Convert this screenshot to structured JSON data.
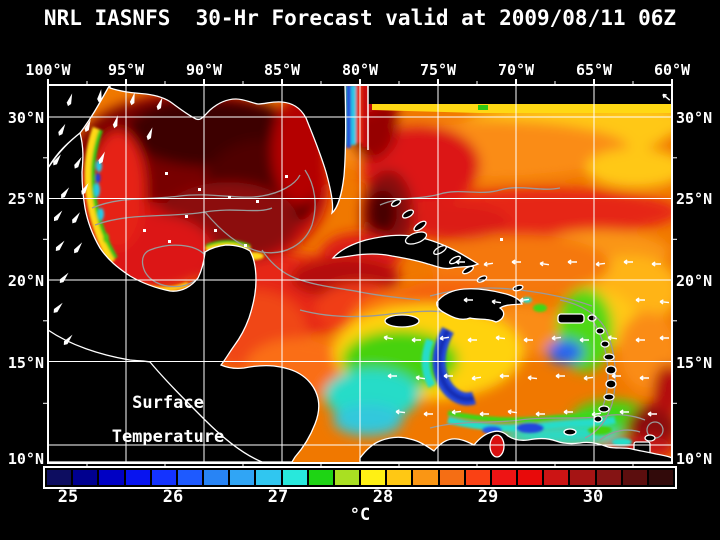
{
  "title": "NRL IASNFS  30-Hr Forecast valid at 2009/08/11 06Z",
  "axes": {
    "top": [
      "100°W",
      "95°W",
      "90°W",
      "85°W",
      "80°W",
      "75°W",
      "70°W",
      "65°W",
      "60°W"
    ],
    "left": [
      "30°N",
      "25°N",
      "20°N",
      "15°N",
      "10°N"
    ],
    "right": [
      "30°N",
      "25°N",
      "20°N",
      "15°N",
      "10°N"
    ]
  },
  "annotation": {
    "line1": "Surface",
    "line2": "Temperature"
  },
  "colorbar": {
    "unit": "°C",
    "ticks": [
      "25",
      "26",
      "27",
      "28",
      "29",
      "30"
    ],
    "min": 24.75,
    "max": 30.75,
    "step": 0.25,
    "colors": [
      "#0d0d60",
      "#00008f",
      "#0000c4",
      "#0814f0",
      "#1433ff",
      "#1e5aff",
      "#2884f5",
      "#30a5f5",
      "#30c6f0",
      "#28e8dc",
      "#1ed414",
      "#a9e022",
      "#fff014",
      "#ffc814",
      "#fa9614",
      "#f56e14",
      "#fa4114",
      "#ee1414",
      "#e80a0a",
      "#cc1414",
      "#a51414",
      "#851414",
      "#5c0e0e",
      "#320a0a"
    ]
  },
  "colors": {
    "background": "#000000",
    "text": "#ffffff",
    "grid": "#ffffff",
    "coastline": "#ffffff",
    "land": "#000000",
    "contour": "#9a9a9a"
  }
}
